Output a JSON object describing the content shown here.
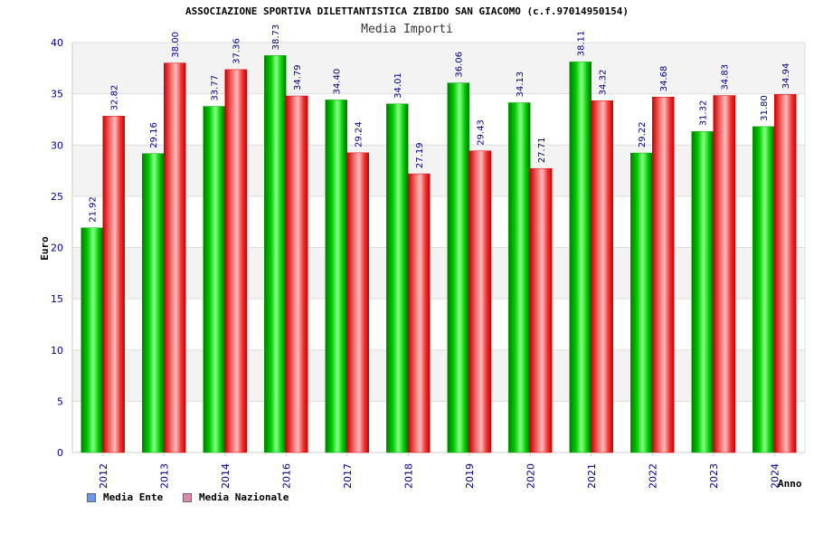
{
  "chart_data": {
    "type": "bar",
    "title": "ASSOCIAZIONE SPORTIVA DILETTANTISTICA ZIBIDO SAN GIACOMO (c.f.97014950154)",
    "subtitle": "Media Importi",
    "xlabel": "Anno",
    "ylabel": "Euro",
    "ylim": [
      0,
      40
    ],
    "yticks": [
      0,
      5,
      10,
      15,
      20,
      25,
      30,
      35,
      40
    ],
    "grid": true,
    "legend_position": "bottom-left",
    "categories": [
      "2012",
      "2013",
      "2014",
      "2016",
      "2017",
      "2018",
      "2019",
      "2020",
      "2021",
      "2022",
      "2023",
      "2024"
    ],
    "series": [
      {
        "name": "Media Ente",
        "color": "#00aa00",
        "legend_color": "#6699ee",
        "values": [
          21.92,
          29.16,
          33.77,
          38.73,
          34.4,
          34.01,
          36.06,
          34.13,
          38.11,
          29.22,
          31.32,
          31.8
        ],
        "labels": [
          "21.92",
          "29.16",
          "33.77",
          "38.73",
          "34.40",
          "34.01",
          "36.06",
          "34.13",
          "38.11",
          "29.22",
          "31.32",
          "31.80"
        ]
      },
      {
        "name": "Media Nazionale",
        "color": "#ee0000",
        "legend_color": "#dd88aa",
        "values": [
          32.82,
          38.0,
          37.36,
          34.79,
          29.24,
          27.19,
          29.43,
          27.71,
          34.32,
          34.68,
          34.83,
          34.94
        ],
        "labels": [
          "32.82",
          "38.00",
          "37.36",
          "34.79",
          "29.24",
          "27.19",
          "29.43",
          "27.71",
          "34.32",
          "34.68",
          "34.83",
          "34.94"
        ]
      }
    ]
  }
}
